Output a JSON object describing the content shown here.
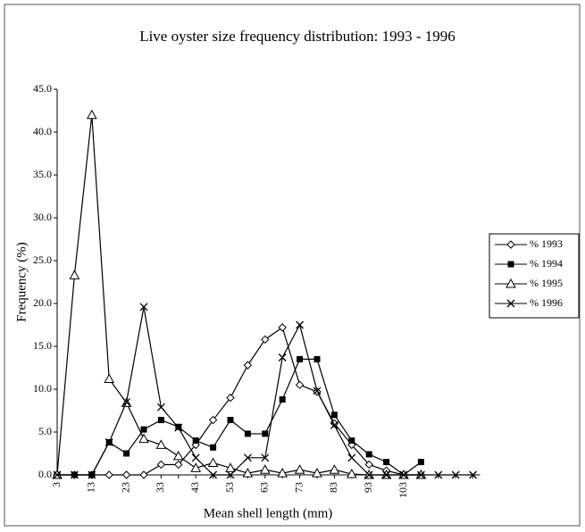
{
  "chart_data": {
    "type": "line",
    "title": "Live oyster size frequency distribution: 1993 - 1996",
    "x_label": "Mean shell length (mm)",
    "y_label": "Frequency (%)",
    "categories": [
      "3",
      null,
      "13",
      null,
      "23",
      null,
      "33",
      null,
      "43",
      null,
      "53",
      null,
      "63",
      null,
      "73",
      null,
      "83",
      null,
      "93",
      null,
      "103",
      null,
      null,
      null,
      null
    ],
    "ylim": [
      0,
      45
    ],
    "yticks": [
      {
        "value": 0,
        "label": "0.0"
      },
      {
        "value": 5,
        "label": "5.0"
      },
      {
        "value": 10,
        "label": "10.0"
      },
      {
        "value": 15,
        "label": "15.0"
      },
      {
        "value": 20,
        "label": "20.0"
      },
      {
        "value": 25,
        "label": "25.0"
      },
      {
        "value": 30,
        "label": "30.0"
      },
      {
        "value": 35,
        "label": "35.0"
      },
      {
        "value": 40,
        "label": "40.0"
      },
      {
        "value": 45,
        "label": "45.0"
      }
    ],
    "legend": "right",
    "series": [
      {
        "name": "% 1993",
        "color": "#000000",
        "marker": "diamond",
        "values": [
          0,
          0,
          0,
          0,
          0,
          0,
          1.2,
          1.2,
          3.5,
          6.4,
          9.0,
          12.8,
          15.8,
          17.2,
          10.5,
          9.7,
          6.0,
          3.5,
          1.2,
          0.5,
          0,
          0,
          null,
          null,
          null
        ]
      },
      {
        "name": "% 1994",
        "color": "#000000",
        "marker": "square",
        "values": [
          0,
          0,
          0,
          3.8,
          2.5,
          5.3,
          6.4,
          5.6,
          4.0,
          3.2,
          6.4,
          4.8,
          4.8,
          8.8,
          13.5,
          13.5,
          7.0,
          4.0,
          2.4,
          1.5,
          0,
          1.5,
          null,
          null,
          null
        ]
      },
      {
        "name": "% 1995",
        "color": "#000000",
        "marker": "triangle",
        "values": [
          0,
          23.3,
          42.0,
          11.2,
          8.4,
          4.2,
          3.5,
          2.2,
          0.8,
          1.4,
          0.8,
          0.2,
          0.6,
          0.2,
          0.6,
          0.2,
          0.6,
          0.1,
          0,
          0,
          0,
          0,
          null,
          null,
          null
        ]
      },
      {
        "name": "% 1996",
        "color": "#000000",
        "marker": "cross",
        "values": [
          0,
          0,
          0,
          3.8,
          8.5,
          19.6,
          7.9,
          5.5,
          2.0,
          0,
          0,
          2.0,
          2.0,
          13.7,
          17.5,
          9.8,
          5.8,
          2.0,
          0,
          0,
          0,
          0,
          0,
          0,
          0
        ]
      }
    ]
  }
}
